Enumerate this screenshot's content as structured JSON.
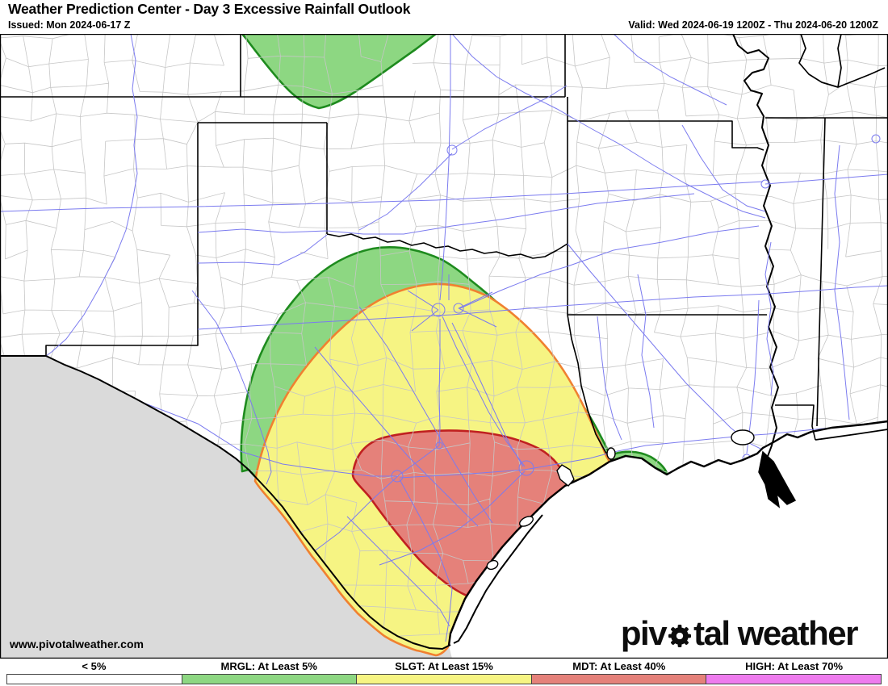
{
  "header": {
    "title": "Weather Prediction Center - Day 3 Excessive Rainfall Outlook",
    "issued": "Issued: Mon 2024-06-17 Z",
    "valid": "Valid: Wed 2024-06-19 1200Z - Thu 2024-06-20 1200Z"
  },
  "map": {
    "watermark": "www.pivotalweather.com",
    "logo_pre": "piv",
    "logo_post": "tal weather",
    "risk_areas": [
      {
        "name": "Marginal (MRGL)",
        "fill": "#8DD782",
        "stroke": "#1E8B1E"
      },
      {
        "name": "Slight (SLGT)",
        "fill": "#F6F483",
        "stroke": "#F08030"
      },
      {
        "name": "Moderate (MDT)",
        "fill": "#E5817A",
        "stroke": "#C02020"
      }
    ],
    "colors": {
      "county_line": "#C6C6C6",
      "state_line": "#000000",
      "water_line": "#7B7BEF",
      "outside_mask": "#DADADA",
      "gulf": "#FFFFFF"
    }
  },
  "legend": {
    "items": [
      {
        "label": "< 5%",
        "color": "#FFFFFF"
      },
      {
        "label": "MRGL: At Least 5%",
        "color": "#8DD782"
      },
      {
        "label": "SLGT: At Least 15%",
        "color": "#F6F483"
      },
      {
        "label": "MDT: At Least 40%",
        "color": "#E5817A"
      },
      {
        "label": "HIGH: At Least 70%",
        "color": "#EE7BEE"
      }
    ]
  }
}
